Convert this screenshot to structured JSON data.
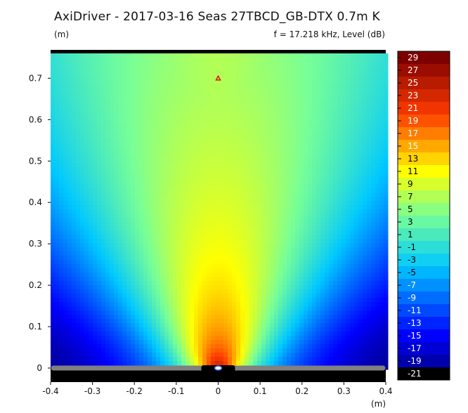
{
  "title": "AxiDriver - 2017-03-16 Seas 27TBCD_GB-DTX 0.7m K",
  "y_unit": "(m)",
  "x_unit": "(m)",
  "freq_label": "f = 17.218 kHz, Level  (dB)",
  "chart_data": {
    "type": "heatmap",
    "title": "AxiDriver - 2017-03-16 Seas 27TBCD_GB-DTX 0.7m K",
    "subtitle": "f = 17.218 kHz, Level  (dB)",
    "xlabel": "(m)",
    "ylabel": "(m)",
    "xlim": [
      -0.4,
      0.4
    ],
    "ylim": [
      0,
      0.76
    ],
    "x_ticks": [
      "-0.4",
      "-0.3",
      "-0.2",
      "-0.1",
      "0",
      "0.1",
      "0.2",
      "0.3",
      "0.4"
    ],
    "y_ticks": [
      "0",
      "0.1",
      "0.2",
      "0.3",
      "0.4",
      "0.5",
      "0.6",
      "0.7"
    ],
    "colorbar_labels": [
      "29",
      "27",
      "25",
      "23",
      "21",
      "19",
      "17",
      "15",
      "13",
      "11",
      "9",
      "7",
      "5",
      "3",
      "1",
      "-1",
      "-3",
      "-5",
      "-7",
      "-9",
      "-11",
      "-13",
      "-15",
      "-17",
      "-19",
      "-21"
    ],
    "colorbar_range": [
      -21,
      29
    ],
    "source_position": [
      0,
      0
    ],
    "marker_position": [
      0,
      0.7
    ],
    "marker_color": "#e01010",
    "baffle_color": "#808080"
  }
}
